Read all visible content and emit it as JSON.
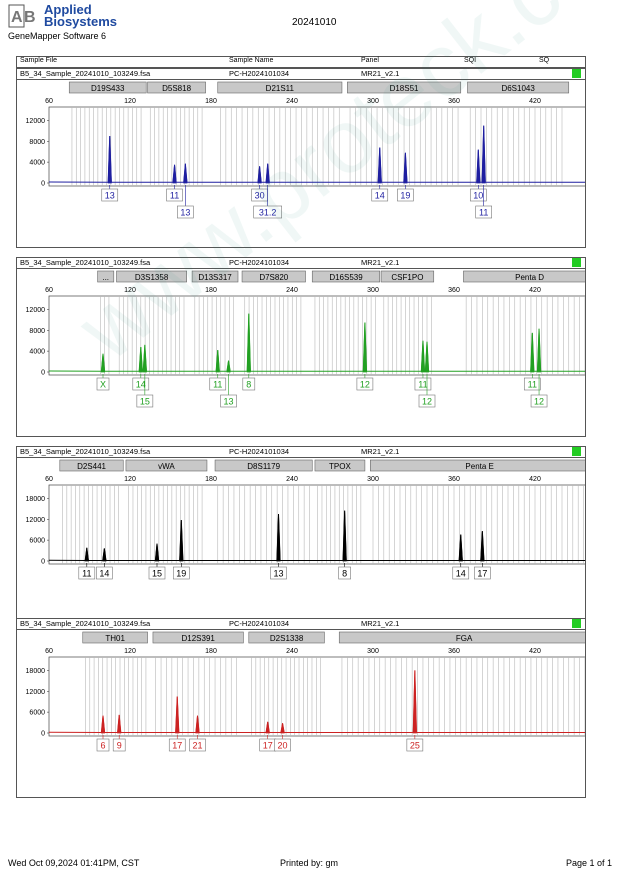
{
  "header": {
    "brand_line1": "Applied",
    "brand_line2": "Biosystems",
    "software": "GeneMapper Software 6",
    "run_date": "20241010"
  },
  "columns": {
    "sample_file": "Sample File",
    "sample_name": "Sample Name",
    "panel": "Panel",
    "sqi": "SQI",
    "sq": "SQ"
  },
  "panels_info": [
    {
      "file": "B5_34_Sample_20241010_103249.fsa",
      "name": "PC-H2024101034",
      "panel": "MR21_v2.1"
    },
    {
      "file": "B5_34_Sample_20241010_103249.fsa",
      "name": "PC-H2024101034",
      "panel": "MR21_v2.1"
    },
    {
      "file": "B5_34_Sample_20241010_103249.fsa",
      "name": "PC-H2024101034",
      "panel": "MR21_v2.1"
    },
    {
      "file": "B5_34_Sample_20241010_103249.fsa",
      "name": "PC-H2024101034",
      "panel": "MR21_v2.1"
    }
  ],
  "footer": {
    "left": "Wed Oct 09,2024 01:41PM, CST",
    "center": "Printed by: gm",
    "right": "Page 1 of 1"
  },
  "watermark": "www.proteck.com.cn",
  "chart_data": [
    {
      "type": "line",
      "color": "#1f1fa0",
      "xlim": [
        60,
        460
      ],
      "ylim": [
        0,
        14000
      ],
      "xticks": [
        60,
        120,
        180,
        240,
        300,
        360,
        420
      ],
      "yticks": [
        0,
        4000,
        8000,
        12000
      ],
      "markers": [
        {
          "label": "D19S433",
          "start": 75,
          "end": 132
        },
        {
          "label": "D5S818",
          "start": 133,
          "end": 176
        },
        {
          "label": "D21S11",
          "start": 185,
          "end": 277
        },
        {
          "label": "D18S51",
          "start": 281,
          "end": 365
        },
        {
          "label": "D6S1043",
          "start": 370,
          "end": 445
        }
      ],
      "peaks": [
        {
          "x": 105,
          "h": 9000
        },
        {
          "x": 153,
          "h": 3500
        },
        {
          "x": 161,
          "h": 3700
        },
        {
          "x": 216,
          "h": 3200
        },
        {
          "x": 222,
          "h": 3700
        },
        {
          "x": 305,
          "h": 6800
        },
        {
          "x": 324,
          "h": 5800
        },
        {
          "x": 378,
          "h": 6400
        },
        {
          "x": 382,
          "h": 11000
        }
      ],
      "alleles": [
        {
          "x": 105,
          "label": "13",
          "row": 0
        },
        {
          "x": 153,
          "label": "11",
          "row": 0
        },
        {
          "x": 161,
          "label": "13",
          "row": 1
        },
        {
          "x": 216,
          "label": "30",
          "row": 0
        },
        {
          "x": 222,
          "label": "31.2",
          "row": 1
        },
        {
          "x": 305,
          "label": "14",
          "row": 0
        },
        {
          "x": 324,
          "label": "19",
          "row": 0
        },
        {
          "x": 378,
          "label": "10",
          "row": 0
        },
        {
          "x": 382,
          "label": "11",
          "row": 1
        }
      ]
    },
    {
      "type": "line",
      "color": "#22a022",
      "xlim": [
        60,
        460
      ],
      "ylim": [
        0,
        14000
      ],
      "xticks": [
        60,
        120,
        180,
        240,
        300,
        360,
        420
      ],
      "yticks": [
        0,
        4000,
        8000,
        12000
      ],
      "markers": [
        {
          "label": "...",
          "start": 96,
          "end": 108
        },
        {
          "label": "D3S1358",
          "start": 110,
          "end": 162
        },
        {
          "label": "D13S317",
          "start": 166,
          "end": 200
        },
        {
          "label": "D7S820",
          "start": 203,
          "end": 250
        },
        {
          "label": "D16S539",
          "start": 255,
          "end": 305
        },
        {
          "label": "CSF1PO",
          "start": 306,
          "end": 345
        },
        {
          "label": "Penta D",
          "start": 367,
          "end": 465
        }
      ],
      "peaks": [
        {
          "x": 100,
          "h": 3500
        },
        {
          "x": 128,
          "h": 4800
        },
        {
          "x": 131,
          "h": 5200
        },
        {
          "x": 185,
          "h": 4200
        },
        {
          "x": 193,
          "h": 2200
        },
        {
          "x": 208,
          "h": 11200
        },
        {
          "x": 294,
          "h": 9500
        },
        {
          "x": 337,
          "h": 6000
        },
        {
          "x": 340,
          "h": 5800
        },
        {
          "x": 418,
          "h": 7500
        },
        {
          "x": 423,
          "h": 8300
        }
      ],
      "alleles": [
        {
          "x": 100,
          "label": "X",
          "row": 0
        },
        {
          "x": 128,
          "label": "14",
          "row": 0
        },
        {
          "x": 131,
          "label": "15",
          "row": 1
        },
        {
          "x": 185,
          "label": "11",
          "row": 0
        },
        {
          "x": 193,
          "label": "13",
          "row": 1
        },
        {
          "x": 208,
          "label": "8",
          "row": 0
        },
        {
          "x": 294,
          "label": "12",
          "row": 0
        },
        {
          "x": 337,
          "label": "11",
          "row": 0
        },
        {
          "x": 340,
          "label": "12",
          "row": 1
        },
        {
          "x": 418,
          "label": "11",
          "row": 0
        },
        {
          "x": 423,
          "label": "12",
          "row": 1
        }
      ]
    },
    {
      "type": "line",
      "color": "#000000",
      "xlim": [
        60,
        460
      ],
      "ylim": [
        0,
        21000
      ],
      "xticks": [
        60,
        120,
        180,
        240,
        300,
        360,
        420
      ],
      "yticks": [
        0,
        6000,
        12000,
        18000
      ],
      "markers": [
        {
          "label": "D2S441",
          "start": 68,
          "end": 115
        },
        {
          "label": "vWA",
          "start": 117,
          "end": 177
        },
        {
          "label": "D8S1179",
          "start": 183,
          "end": 255
        },
        {
          "label": "TPOX",
          "start": 257,
          "end": 294
        },
        {
          "label": "Penta E",
          "start": 298,
          "end": 460
        }
      ],
      "peaks": [
        {
          "x": 88,
          "h": 3800
        },
        {
          "x": 101,
          "h": 3600
        },
        {
          "x": 140,
          "h": 5000
        },
        {
          "x": 158,
          "h": 11800
        },
        {
          "x": 230,
          "h": 13500
        },
        {
          "x": 279,
          "h": 14500
        },
        {
          "x": 365,
          "h": 7600
        },
        {
          "x": 381,
          "h": 8600
        }
      ],
      "alleles": [
        {
          "x": 88,
          "label": "11",
          "row": 0
        },
        {
          "x": 101,
          "label": "14",
          "row": 0
        },
        {
          "x": 140,
          "label": "15",
          "row": 0
        },
        {
          "x": 158,
          "label": "19",
          "row": 0
        },
        {
          "x": 230,
          "label": "13",
          "row": 0
        },
        {
          "x": 279,
          "label": "8",
          "row": 0
        },
        {
          "x": 365,
          "label": "14",
          "row": 0
        },
        {
          "x": 381,
          "label": "17",
          "row": 0
        }
      ]
    },
    {
      "type": "line",
      "color": "#cc2222",
      "xlim": [
        60,
        460
      ],
      "ylim": [
        0,
        21000
      ],
      "xticks": [
        60,
        120,
        180,
        240,
        300,
        360,
        420
      ],
      "yticks": [
        0,
        6000,
        12000,
        18000
      ],
      "markers": [
        {
          "label": "TH01",
          "start": 85,
          "end": 133
        },
        {
          "label": "D12S391",
          "start": 137,
          "end": 204
        },
        {
          "label": "D2S1338",
          "start": 208,
          "end": 264
        },
        {
          "label": "FGA",
          "start": 275,
          "end": 460
        }
      ],
      "peaks": [
        {
          "x": 100,
          "h": 5000
        },
        {
          "x": 112,
          "h": 5200
        },
        {
          "x": 155,
          "h": 10500
        },
        {
          "x": 170,
          "h": 5000
        },
        {
          "x": 222,
          "h": 3200
        },
        {
          "x": 233,
          "h": 2800
        },
        {
          "x": 331,
          "h": 18000
        }
      ],
      "alleles": [
        {
          "x": 100,
          "label": "6",
          "row": 0
        },
        {
          "x": 112,
          "label": "9",
          "row": 0
        },
        {
          "x": 155,
          "label": "17",
          "row": 0
        },
        {
          "x": 170,
          "label": "21",
          "row": 0
        },
        {
          "x": 222,
          "label": "17",
          "row": 0
        },
        {
          "x": 233,
          "label": "20",
          "row": 0
        },
        {
          "x": 331,
          "label": "25",
          "row": 0
        }
      ]
    }
  ]
}
